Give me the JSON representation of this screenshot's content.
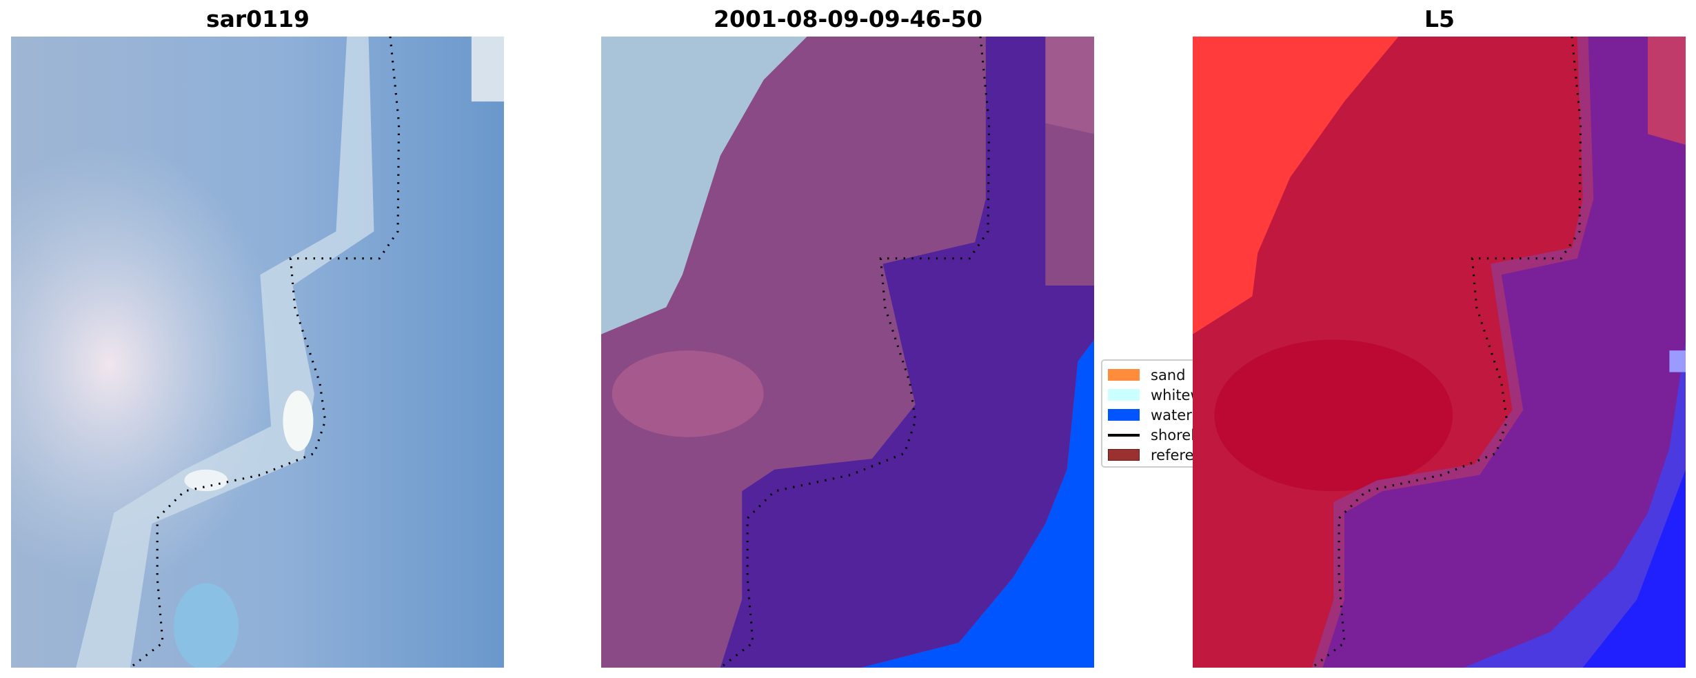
{
  "panels": [
    {
      "title": "sar0119"
    },
    {
      "title": "2001-08-09-09-46-50"
    },
    {
      "title": "L5"
    }
  ],
  "legend": {
    "items": [
      {
        "label": "sand",
        "color": "#ff8c3a",
        "type": "patch"
      },
      {
        "label": "whitew",
        "color": "#ccffff",
        "type": "patch"
      },
      {
        "label": "water",
        "color": "#0055ff",
        "type": "patch"
      },
      {
        "label": "shorel",
        "color": "#000000",
        "type": "line"
      },
      {
        "label": "referer",
        "color": "#9b3030",
        "type": "patch"
      }
    ]
  },
  "colors": {
    "whitewater_overlay": "#a9c4d8",
    "classified_land": "#8a4a85",
    "classified_dark": "#52239a",
    "water": "#0055ff",
    "l5_land": "#c0183e",
    "l5_red": "#ff3b3b",
    "l5_purple": "#7a2099",
    "l5_blue": "#2020ff"
  }
}
